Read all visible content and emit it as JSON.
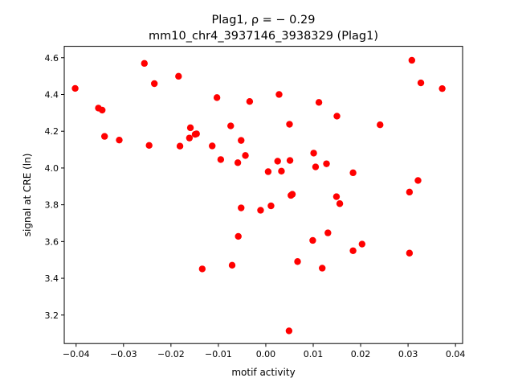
{
  "chart_data": {
    "type": "scatter",
    "title_line1": "Plag1, ρ = − 0.29",
    "title_line2": "mm10_chr4_3937146_3938329 (Plag1)",
    "xlabel": "motif activity",
    "ylabel": "signal at CRE (ln)",
    "xlim": [
      -0.0425,
      0.0415
    ],
    "ylim": [
      3.045,
      4.662
    ],
    "xticks": [
      -0.04,
      -0.03,
      -0.02,
      -0.01,
      0.0,
      0.01,
      0.02,
      0.03,
      0.04
    ],
    "xtick_labels": [
      "−0.04",
      "−0.03",
      "−0.02",
      "−0.01",
      "0.00",
      "0.01",
      "0.02",
      "0.03",
      "0.04"
    ],
    "yticks": [
      3.2,
      3.4,
      3.6,
      3.8,
      4.0,
      4.2,
      4.4,
      4.6
    ],
    "ytick_labels": [
      "3.2",
      "3.4",
      "3.6",
      "3.8",
      "4.0",
      "4.2",
      "4.4",
      "4.6"
    ],
    "grid": false,
    "marker_color": "#ff0000",
    "points": [
      {
        "x": -0.0402,
        "y": 4.433
      },
      {
        "x": -0.0353,
        "y": 4.326
      },
      {
        "x": -0.0345,
        "y": 4.315
      },
      {
        "x": -0.034,
        "y": 4.172
      },
      {
        "x": -0.0309,
        "y": 4.152
      },
      {
        "x": -0.0256,
        "y": 4.569
      },
      {
        "x": -0.0246,
        "y": 4.123
      },
      {
        "x": -0.0235,
        "y": 4.459
      },
      {
        "x": -0.0184,
        "y": 4.499
      },
      {
        "x": -0.0181,
        "y": 4.119
      },
      {
        "x": -0.0161,
        "y": 4.163
      },
      {
        "x": -0.0159,
        "y": 4.219
      },
      {
        "x": -0.0149,
        "y": 4.183
      },
      {
        "x": -0.0146,
        "y": 4.186
      },
      {
        "x": -0.0134,
        "y": 3.451
      },
      {
        "x": -0.0113,
        "y": 4.12
      },
      {
        "x": -0.0103,
        "y": 4.383
      },
      {
        "x": -0.0095,
        "y": 4.046
      },
      {
        "x": -0.0074,
        "y": 4.229
      },
      {
        "x": -0.0071,
        "y": 3.471
      },
      {
        "x": -0.0059,
        "y": 4.029
      },
      {
        "x": -0.0058,
        "y": 3.628
      },
      {
        "x": -0.0052,
        "y": 3.783
      },
      {
        "x": -0.0052,
        "y": 4.15
      },
      {
        "x": -0.0043,
        "y": 4.068
      },
      {
        "x": -0.0034,
        "y": 4.362
      },
      {
        "x": -0.0011,
        "y": 3.77
      },
      {
        "x": 0.0005,
        "y": 3.98
      },
      {
        "x": 0.0011,
        "y": 3.794
      },
      {
        "x": 0.0025,
        "y": 4.037
      },
      {
        "x": 0.0028,
        "y": 4.4
      },
      {
        "x": 0.0033,
        "y": 3.983
      },
      {
        "x": 0.0049,
        "y": 3.114
      },
      {
        "x": 0.005,
        "y": 4.238
      },
      {
        "x": 0.0051,
        "y": 4.041
      },
      {
        "x": 0.0053,
        "y": 3.851
      },
      {
        "x": 0.0056,
        "y": 3.857
      },
      {
        "x": 0.0067,
        "y": 3.491
      },
      {
        "x": 0.0099,
        "y": 3.606
      },
      {
        "x": 0.0101,
        "y": 4.081
      },
      {
        "x": 0.0105,
        "y": 4.006
      },
      {
        "x": 0.0112,
        "y": 4.357
      },
      {
        "x": 0.0119,
        "y": 3.455
      },
      {
        "x": 0.0128,
        "y": 4.023
      },
      {
        "x": 0.0131,
        "y": 3.647
      },
      {
        "x": 0.0149,
        "y": 3.844
      },
      {
        "x": 0.015,
        "y": 4.282
      },
      {
        "x": 0.0156,
        "y": 3.806
      },
      {
        "x": 0.0184,
        "y": 3.974
      },
      {
        "x": 0.0184,
        "y": 3.55
      },
      {
        "x": 0.0203,
        "y": 3.586
      },
      {
        "x": 0.0241,
        "y": 4.235
      },
      {
        "x": 0.0303,
        "y": 3.537
      },
      {
        "x": 0.0303,
        "y": 3.869
      },
      {
        "x": 0.0308,
        "y": 4.586
      },
      {
        "x": 0.0321,
        "y": 3.932
      },
      {
        "x": 0.0327,
        "y": 4.463
      },
      {
        "x": 0.0372,
        "y": 4.432
      }
    ]
  }
}
